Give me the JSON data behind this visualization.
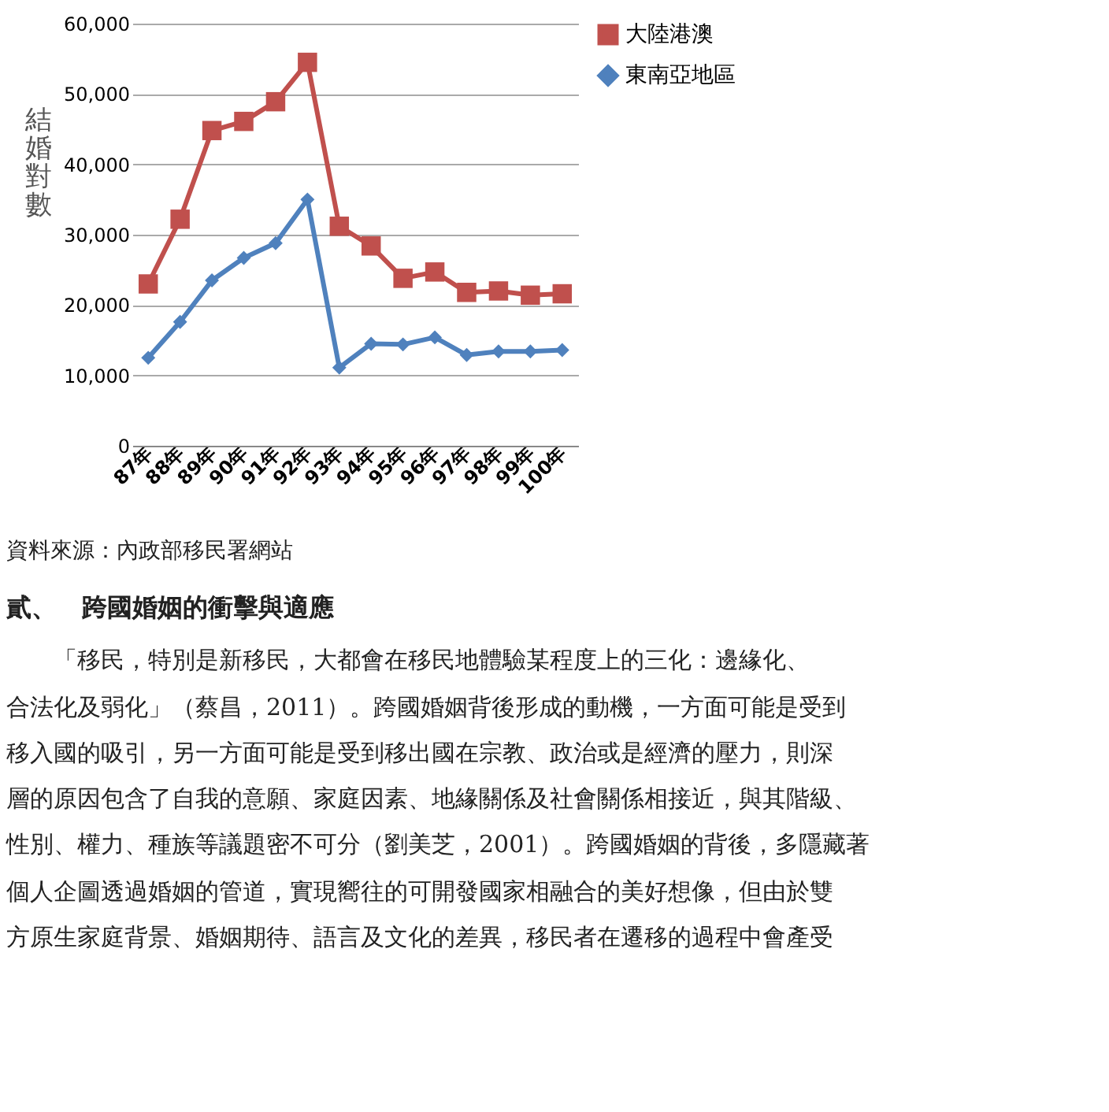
{
  "chart_data": {
    "type": "line",
    "ylabel": "結婚對數",
    "categories": [
      "87年",
      "88年",
      "89年",
      "90年",
      "91年",
      "92年",
      "93年",
      "94年",
      "95年",
      "96年",
      "97年",
      "98年",
      "99年",
      "100年"
    ],
    "series": [
      {
        "name": "大陸港澳",
        "color": "#c0504d",
        "marker": "square",
        "values": [
          23000,
          32200,
          44800,
          46100,
          48900,
          54500,
          31200,
          28400,
          23800,
          24700,
          21800,
          22000,
          21400,
          21600
        ]
      },
      {
        "name": "東南亞地區",
        "color": "#4f81bd",
        "marker": "diamond",
        "values": [
          12500,
          17600,
          23500,
          26700,
          28800,
          35000,
          11100,
          14500,
          14400,
          15400,
          12900,
          13400,
          13400,
          13600
        ]
      }
    ],
    "ylim": [
      0,
      60000
    ],
    "yticks": [
      {
        "value": 0,
        "label": "0"
      },
      {
        "value": 10000,
        "label": "10,000"
      },
      {
        "value": 20000,
        "label": "20,000"
      },
      {
        "value": 30000,
        "label": "30,000"
      },
      {
        "value": 40000,
        "label": "40,000"
      },
      {
        "value": 50000,
        "label": "50,000"
      },
      {
        "value": 60000,
        "label": "60,000"
      }
    ],
    "grid": "y",
    "legend": "right",
    "line_style": "solid",
    "annotations": [
      "資料來源：內政部移民署網站",
      "貳、　跨國婚姻的衝擊與適應",
      "「移民，特別是新移民，大都會在移民地體驗某程度上的三化：邊緣化、",
      "合法化及弱化」（蔡昌，2011）。跨國婚姻背後形成的動機，一方面可能是受到",
      "移入國的吸引，另一方面可能是受到移出國在宗教、政治或是經濟的壓力，則深",
      "層的原因包含了自我的意願、家庭因素、地緣關係及社會關係相接近，與其階級、",
      "性別、權力、種族等議題密不可分（劉美芝，2001）。跨國婚姻的背後，多隱藏著",
      "個人企圖透過婚姻的管道，實現嚮往的可開發國家相融合的美好想像，但由於雙",
      "方原生家庭背景、婚姻期待、語言及文化的差異，移民者在遷移的過程中會產受"
    ]
  }
}
